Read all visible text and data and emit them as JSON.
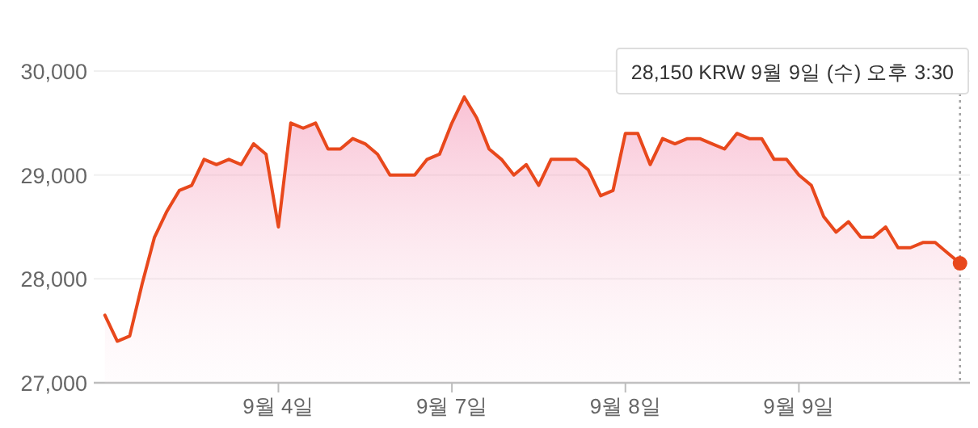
{
  "chart_data": {
    "type": "area",
    "color": "#e8481c",
    "grid": "y",
    "marker": "none",
    "line_style": "solid",
    "categories": [
      null,
      null,
      null,
      null,
      null,
      null,
      null,
      null,
      null,
      null,
      null,
      null,
      null,
      null,
      "9월 4일",
      null,
      null,
      null,
      null,
      null,
      null,
      null,
      null,
      null,
      null,
      null,
      null,
      null,
      "9월 7일",
      null,
      null,
      null,
      null,
      null,
      null,
      null,
      null,
      null,
      null,
      null,
      null,
      null,
      "9월 8일",
      null,
      null,
      null,
      null,
      null,
      null,
      null,
      null,
      null,
      null,
      null,
      null,
      null,
      "9월 9일",
      null,
      null,
      null,
      null,
      null,
      null,
      null,
      null,
      null,
      null,
      null,
      null,
      null
    ],
    "values": [
      27650,
      27400,
      27450,
      27950,
      28400,
      28650,
      28850,
      28900,
      29150,
      29100,
      29150,
      29100,
      29300,
      29200,
      28500,
      29500,
      29450,
      29500,
      29250,
      29250,
      29350,
      29300,
      29200,
      29000,
      29000,
      29000,
      29150,
      29200,
      29500,
      29750,
      29550,
      29250,
      29150,
      29000,
      29100,
      28900,
      29150,
      29150,
      29150,
      29050,
      28800,
      28850,
      29400,
      29400,
      29100,
      29350,
      29300,
      29350,
      29350,
      29300,
      29250,
      29400,
      29350,
      29350,
      29150,
      29150,
      29000,
      28900,
      28600,
      28450,
      28550,
      28400,
      28400,
      28500,
      28300,
      28300,
      28350,
      28350,
      28250,
      28150
    ],
    "ylim": [
      27000,
      30000
    ],
    "yticks": [
      {
        "value": 27000,
        "label": "27,000"
      },
      {
        "value": 28000,
        "label": "28,000"
      },
      {
        "value": 29000,
        "label": "29,000"
      },
      {
        "value": 30000,
        "label": "30,000"
      }
    ],
    "annotations": [
      "28,150 KRW  9월 9일 (수) 오후 3:30"
    ]
  }
}
